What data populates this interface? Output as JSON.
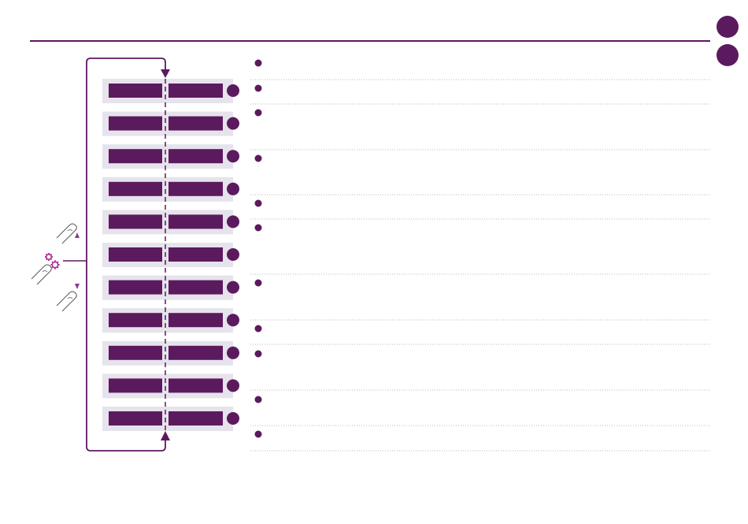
{
  "page": {
    "badges": [
      "",
      ""
    ],
    "accent_color": "#5c1a5e",
    "row_bg_color": "#e6e3ec",
    "divider_color": "#b9b9b9"
  },
  "diagram": {
    "row_count": 11,
    "rows": [
      {
        "left_label": "",
        "right_label": "",
        "marker": ""
      },
      {
        "left_label": "",
        "right_label": "",
        "marker": ""
      },
      {
        "left_label": "",
        "right_label": "",
        "marker": ""
      },
      {
        "left_label": "",
        "right_label": "",
        "marker": ""
      },
      {
        "left_label": "",
        "right_label": "",
        "marker": ""
      },
      {
        "left_label": "",
        "right_label": "",
        "marker": ""
      },
      {
        "left_label": "",
        "right_label": "",
        "marker": ""
      },
      {
        "left_label": "",
        "right_label": "",
        "marker": ""
      },
      {
        "left_label": "",
        "right_label": "",
        "marker": ""
      },
      {
        "left_label": "",
        "right_label": "",
        "marker": ""
      },
      {
        "left_label": "",
        "right_label": "",
        "marker": ""
      }
    ],
    "controls": [
      {
        "icon": "finger-tap-icon",
        "arrow": "up-arrow-icon"
      },
      {
        "icon": "finger-tap-icon",
        "arrow": "gear-icon"
      },
      {
        "icon": "finger-tap-icon",
        "arrow": "down-arrow-icon"
      }
    ]
  },
  "legend": {
    "items": [
      {
        "text": ""
      },
      {
        "text": ""
      },
      {
        "text": ""
      },
      {
        "text": ""
      },
      {
        "text": ""
      },
      {
        "text": ""
      },
      {
        "text": ""
      },
      {
        "text": ""
      },
      {
        "text": ""
      },
      {
        "text": ""
      },
      {
        "text": ""
      }
    ]
  }
}
